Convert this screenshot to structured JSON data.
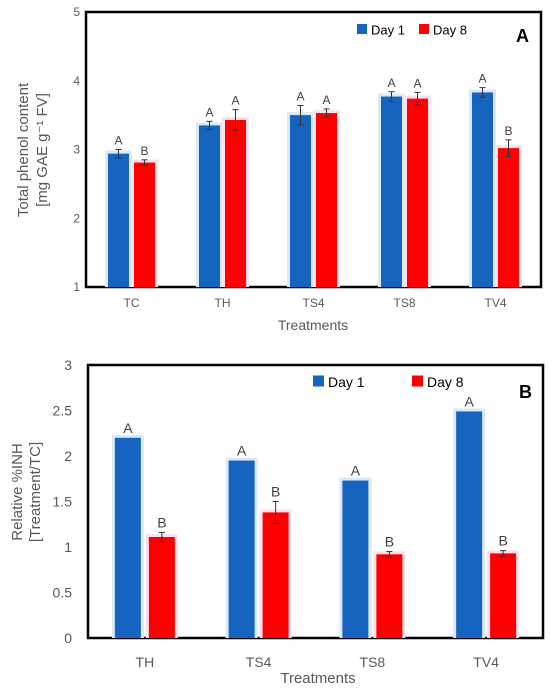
{
  "chart_data": [
    {
      "panel": "A",
      "type": "bar",
      "categories": [
        "TC",
        "TH",
        "TS4",
        "TS8",
        "TV4"
      ],
      "series": [
        {
          "name": "Day 1",
          "color": "#1565C0",
          "values": [
            2.94,
            3.35,
            3.5,
            3.77,
            3.83
          ],
          "errors": [
            0.06,
            0.06,
            0.14,
            0.07,
            0.07
          ],
          "letters": [
            "A",
            "A",
            "A",
            "A",
            "A"
          ]
        },
        {
          "name": "Day 8",
          "color": "#FF0000",
          "values": [
            2.81,
            3.43,
            3.53,
            3.74,
            3.02
          ],
          "errors": [
            0.04,
            0.15,
            0.06,
            0.09,
            0.12
          ],
          "letters": [
            "B",
            "A",
            "A",
            "A",
            "B"
          ]
        }
      ],
      "xlabel": "Treatments",
      "ylabel_line1": "Total phenol content",
      "ylabel_line2": "[mg GAE g⁻¹ FV]",
      "ylim": [
        1,
        5
      ],
      "yticks": [
        "1",
        "2",
        "3",
        "4",
        "5"
      ],
      "legend_position": "top-right",
      "grid": false
    },
    {
      "panel": "B",
      "type": "bar",
      "categories": [
        "TH",
        "TS4",
        "TS8",
        "TV4"
      ],
      "series": [
        {
          "name": "Day 1",
          "color": "#1565C0",
          "values": [
            2.2,
            1.95,
            1.73,
            2.49
          ],
          "errors": [
            0,
            0,
            0,
            0
          ],
          "letters": [
            "A",
            "A",
            "A",
            "A"
          ]
        },
        {
          "name": "Day 8",
          "color": "#FF0000",
          "values": [
            1.11,
            1.38,
            0.92,
            0.93
          ],
          "errors": [
            0.05,
            0.12,
            0.03,
            0.03
          ],
          "letters": [
            "B",
            "B",
            "B",
            "B"
          ]
        }
      ],
      "xlabel": "Treatments",
      "ylabel_line1": "Relative %INH",
      "ylabel_line2": "[Treatment/TC]",
      "ylim": [
        0,
        3
      ],
      "yticks": [
        "0",
        "0.5",
        "1",
        "1.5",
        "2",
        "2.5",
        "3"
      ],
      "legend_position": "top-center",
      "grid": false
    }
  ]
}
